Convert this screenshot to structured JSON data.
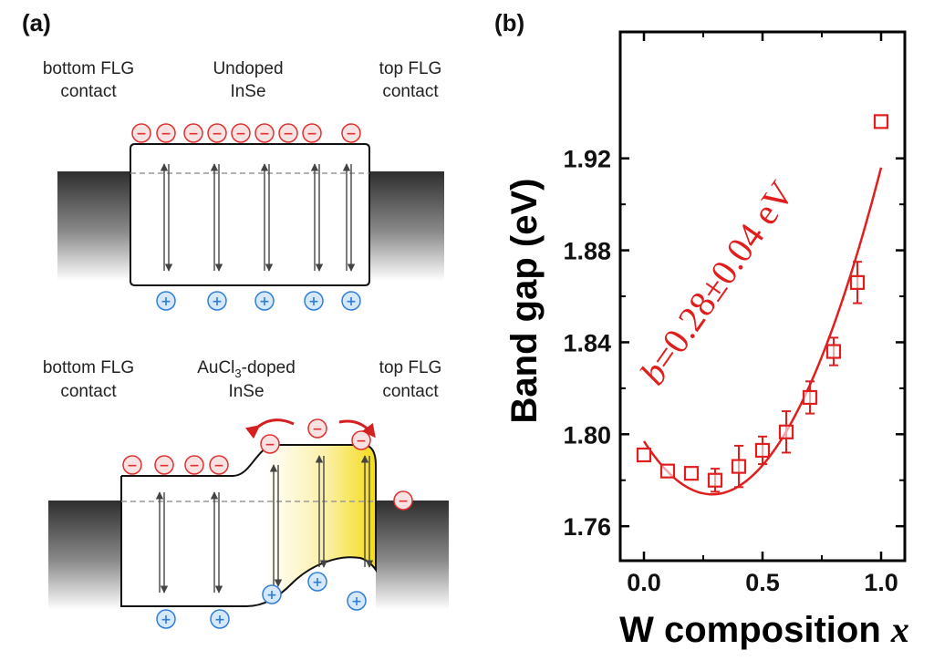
{
  "panel_a": {
    "label": "(a)",
    "top": {
      "left_label": [
        "bottom FLG",
        "contact"
      ],
      "center_label": [
        "Undoped",
        "InSe"
      ],
      "right_label": [
        "top FLG",
        "contact"
      ]
    },
    "bottom": {
      "left_label": [
        "bottom FLG",
        "contact"
      ],
      "center_label_main": "AuCl",
      "center_label_sub": "3",
      "center_label_rest": "-doped",
      "center_label_line2": "InSe",
      "right_label": [
        "top FLG",
        "contact"
      ]
    },
    "electron_symbol": "−",
    "hole_symbol": "+",
    "colors": {
      "electron": "#e03030",
      "hole": "#2f7fd8",
      "doped_fill": "#f4dc18"
    }
  },
  "panel_b": {
    "label": "(b)",
    "annotation": {
      "var": "b",
      "text": "=0.28±0.04 eV"
    },
    "xlabel": {
      "text": "W composition ",
      "var": "x"
    },
    "ylabel": "Band gap (eV)",
    "colors": {
      "data": "#e01e1e",
      "axis": "#000000"
    }
  },
  "chart_data": {
    "type": "scatter",
    "title": "",
    "xlabel": "W composition x",
    "ylabel": "Band gap (eV)",
    "xlim": [
      -0.1,
      1.1
    ],
    "ylim": [
      1.745,
      1.975
    ],
    "xticks": [
      0.0,
      0.5,
      1.0
    ],
    "xtick_labels": [
      "0.0",
      "0.5",
      "1.0"
    ],
    "yticks": [
      1.76,
      1.8,
      1.84,
      1.88,
      1.92
    ],
    "ytick_labels": [
      "1.76",
      "1.80",
      "1.84",
      "1.88",
      "1.92"
    ],
    "grid": false,
    "points": [
      {
        "x": 0.0,
        "y": 1.791,
        "err": 0.0
      },
      {
        "x": 0.1,
        "y": 1.784,
        "err": 0.0
      },
      {
        "x": 0.2,
        "y": 1.783,
        "err": 0.0
      },
      {
        "x": 0.3,
        "y": 1.78,
        "err": 0.005
      },
      {
        "x": 0.4,
        "y": 1.786,
        "err": 0.009
      },
      {
        "x": 0.5,
        "y": 1.793,
        "err": 0.006
      },
      {
        "x": 0.6,
        "y": 1.801,
        "err": 0.009
      },
      {
        "x": 0.7,
        "y": 1.816,
        "err": 0.007
      },
      {
        "x": 0.8,
        "y": 1.836,
        "err": 0.006
      },
      {
        "x": 0.9,
        "y": 1.866,
        "err": 0.009
      },
      {
        "x": 1.0,
        "y": 1.936,
        "err": 0.0
      }
    ],
    "fit_curve": {
      "bowing_b": 0.28,
      "y_at_x0": 1.797,
      "y_at_x1": 1.916,
      "x_range": [
        0.0,
        1.0
      ]
    }
  }
}
